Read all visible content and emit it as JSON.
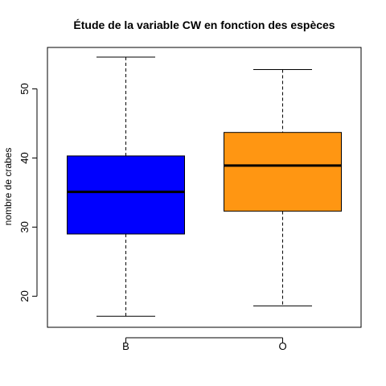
{
  "chart_data": {
    "type": "boxplot",
    "title": "Étude de la variable CW en fonction des espèces",
    "xlabel": "",
    "ylabel": "nombre de crabes",
    "categories": [
      "B",
      "O"
    ],
    "ylim": [
      15.5,
      56
    ],
    "yticks": [
      20,
      30,
      40,
      50
    ],
    "boxes": [
      {
        "category": "B",
        "min": 17.1,
        "q1": 29.0,
        "median": 35.1,
        "q3": 40.3,
        "max": 54.6,
        "color": "#0000ff"
      },
      {
        "category": "O",
        "min": 18.6,
        "q1": 32.3,
        "median": 38.9,
        "q3": 43.7,
        "max": 52.8,
        "color": "#ff9612"
      }
    ],
    "grid": false,
    "legend": "none"
  }
}
